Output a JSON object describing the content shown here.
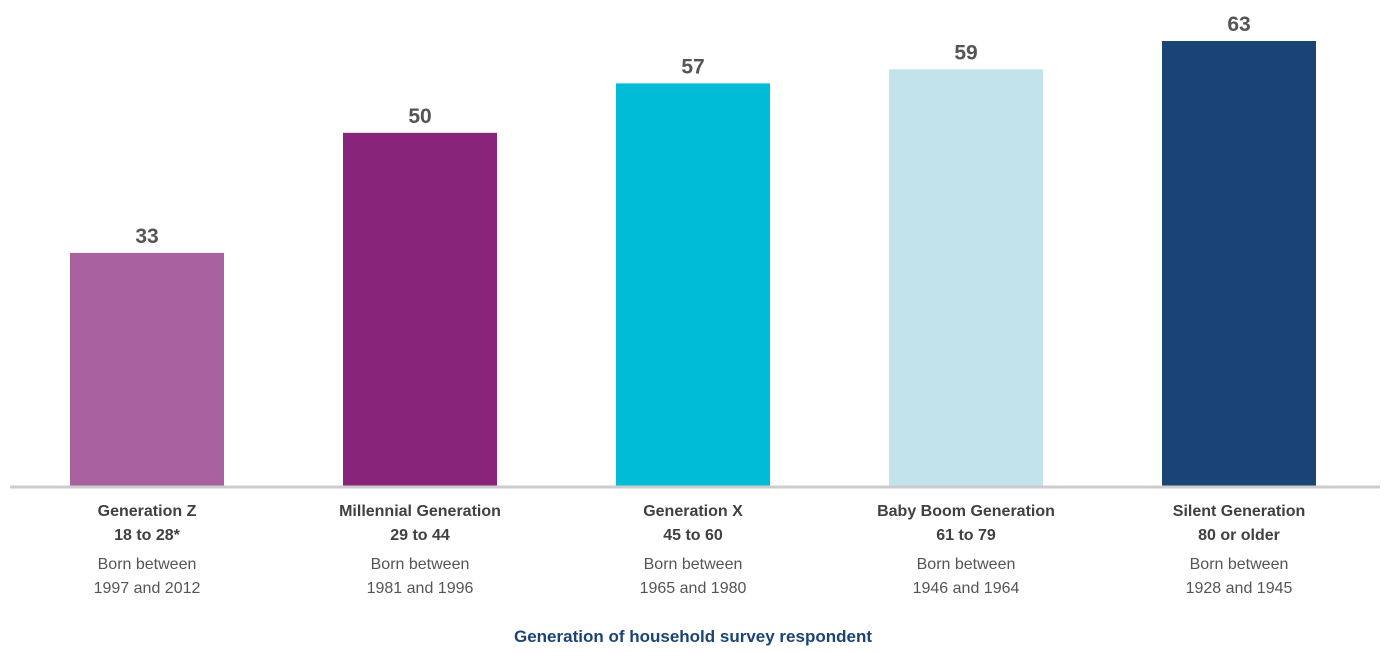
{
  "chart_data": {
    "type": "bar",
    "categories": [
      {
        "name": "Generation Z",
        "age": "18 to 28*",
        "born_line1": "Born between",
        "born_line2": "1997 and 2012"
      },
      {
        "name": "Millennial Generation",
        "age": "29 to 44",
        "born_line1": "Born between",
        "born_line2": "1981 and 1996"
      },
      {
        "name": "Generation X",
        "age": "45 to 60",
        "born_line1": "Born between",
        "born_line2": "1965 and 1980"
      },
      {
        "name": "Baby Boom Generation",
        "age": "61 to 79",
        "born_line1": "Born between",
        "born_line2": "1946 and 1964"
      },
      {
        "name": "Silent Generation",
        "age": "80 or older",
        "born_line1": "Born between",
        "born_line2": "1928 and 1945"
      }
    ],
    "values": [
      33,
      50,
      57,
      59,
      63
    ],
    "colors": [
      "#a9619f",
      "#88257a",
      "#00bcd6",
      "#c2e2ec",
      "#1a4476"
    ],
    "xlabel": "Generation of household survey respondent",
    "ylabel": "",
    "ylim": [
      0,
      63
    ],
    "grid": false,
    "legend": "none"
  },
  "style": {
    "axis_color": "#cccccc",
    "xlabel_color": "#1a4476"
  }
}
